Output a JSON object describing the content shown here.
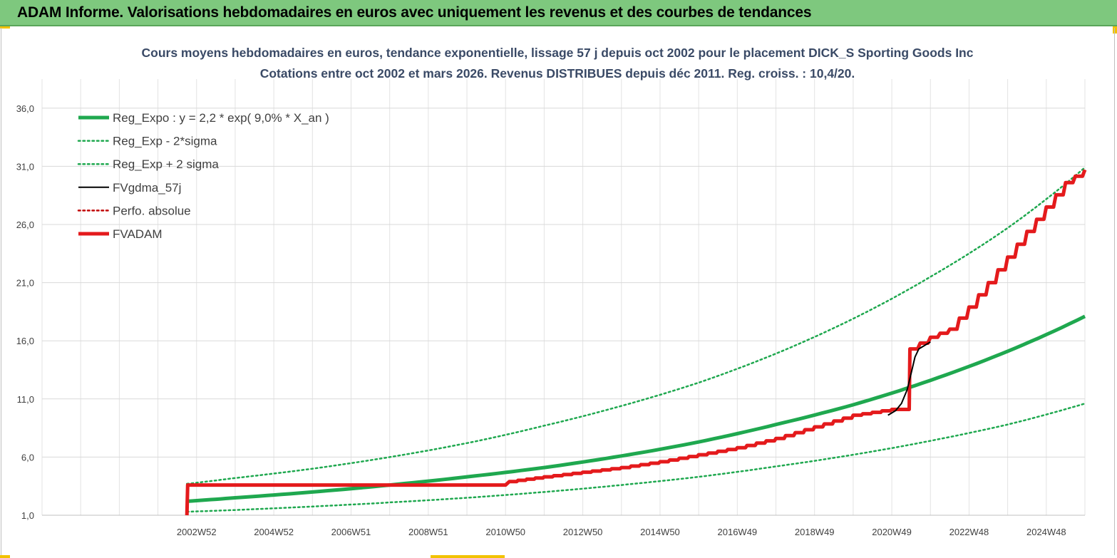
{
  "header": {
    "title": "ADAM Informe. Valorisations hebdomadaires en euros avec uniquement les revenus et des courbes de tendances"
  },
  "chart_data": {
    "type": "line",
    "title_line1": "Cours moyens hebdomadaires en euros, tendance exponentielle, lissage 57 j depuis oct 2002 pour le placement DICK_S Sporting Goods Inc",
    "title_line2": "Cotations entre oct 2002 et mars 2026. Revenus DISTRIBUES depuis déc 2011. Reg. croiss. : 10,4/20.",
    "xlabel": "",
    "ylabel": "",
    "x_range": [
      1999.0,
      2026.0
    ],
    "ylim": [
      1.0,
      38.5
    ],
    "y_ticks": [
      1.0,
      6.0,
      11.0,
      16.0,
      21.0,
      26.0,
      31.0,
      36.0
    ],
    "y_tick_labels": [
      "1,0",
      "6,0",
      "11,0",
      "16,0",
      "21,0",
      "26,0",
      "31,0",
      "36,0"
    ],
    "x_ticks": [
      2003,
      2005,
      2007,
      2009,
      2011,
      2013,
      2015,
      2017,
      2019,
      2021,
      2023,
      2025
    ],
    "x_tick_labels": [
      "2002W52",
      "2004W52",
      "2006W51",
      "2008W51",
      "2010W50",
      "2012W50",
      "2014W50",
      "2016W49",
      "2018W49",
      "2020W49",
      "2022W48",
      "2024W48"
    ],
    "grid": true,
    "legend_position": "top-left",
    "series": [
      {
        "name": "Reg_Expo : y = 2,2 * exp( 9,0% *  X_an )",
        "color": "#1fa84f",
        "style": "solid-thick",
        "x": [
          2002.75,
          2004,
          2006,
          2008,
          2010,
          2012,
          2014,
          2016,
          2018,
          2020,
          2022,
          2024,
          2026
        ],
        "values": [
          2.2,
          2.5,
          3.0,
          3.6,
          4.3,
          5.1,
          6.1,
          7.3,
          8.8,
          10.5,
          12.6,
          15.1,
          18.1
        ]
      },
      {
        "name": "Reg_Exp - 2*sigma",
        "color": "#1fa84f",
        "style": "dotted",
        "x": [
          2002.75,
          2004,
          2006,
          2008,
          2010,
          2012,
          2014,
          2016,
          2018,
          2020,
          2022,
          2024,
          2026
        ],
        "values": [
          1.3,
          1.45,
          1.75,
          2.1,
          2.5,
          3.0,
          3.6,
          4.3,
          5.2,
          6.2,
          7.4,
          8.8,
          10.6
        ]
      },
      {
        "name": "Reg_Exp + 2 sigma",
        "color": "#1fa84f",
        "style": "dotted",
        "x": [
          2002.75,
          2004,
          2006,
          2008,
          2010,
          2012,
          2014,
          2016,
          2018,
          2020,
          2022,
          2024,
          2026
        ],
        "values": [
          3.7,
          4.2,
          5.0,
          6.0,
          7.2,
          8.7,
          10.4,
          12.4,
          14.9,
          17.9,
          21.5,
          25.7,
          30.9
        ]
      },
      {
        "name": "FVgdma_57j",
        "color": "#000000",
        "style": "solid",
        "x": [
          2020.9,
          2021.1,
          2021.25,
          2021.4,
          2021.5,
          2021.6,
          2021.7,
          2021.8,
          2022.0
        ],
        "values": [
          9.6,
          10.0,
          10.6,
          11.8,
          13.2,
          14.6,
          15.3,
          15.5,
          15.9
        ]
      },
      {
        "name": "Perfo. absolue",
        "color": "#c00000",
        "style": "dotted",
        "x": [],
        "values": []
      },
      {
        "name": "FVADAM",
        "color": "#e41a1c",
        "style": "solid-thick",
        "x": [
          2002.75,
          2002.77,
          2011.0,
          2011.1,
          2012,
          2013,
          2014,
          2015,
          2016,
          2017,
          2018,
          2019,
          2020,
          2021,
          2021.45,
          2021.47,
          2022,
          2022.5,
          2023,
          2023.5,
          2024,
          2024.5,
          2025,
          2025.5,
          2026
        ],
        "values": [
          1.0,
          3.6,
          3.6,
          3.9,
          4.3,
          4.7,
          5.1,
          5.6,
          6.2,
          6.8,
          7.6,
          8.6,
          9.6,
          10.1,
          10.1,
          15.3,
          16.3,
          17.0,
          18.9,
          21.0,
          23.2,
          25.4,
          27.5,
          29.6,
          30.7
        ]
      }
    ]
  }
}
